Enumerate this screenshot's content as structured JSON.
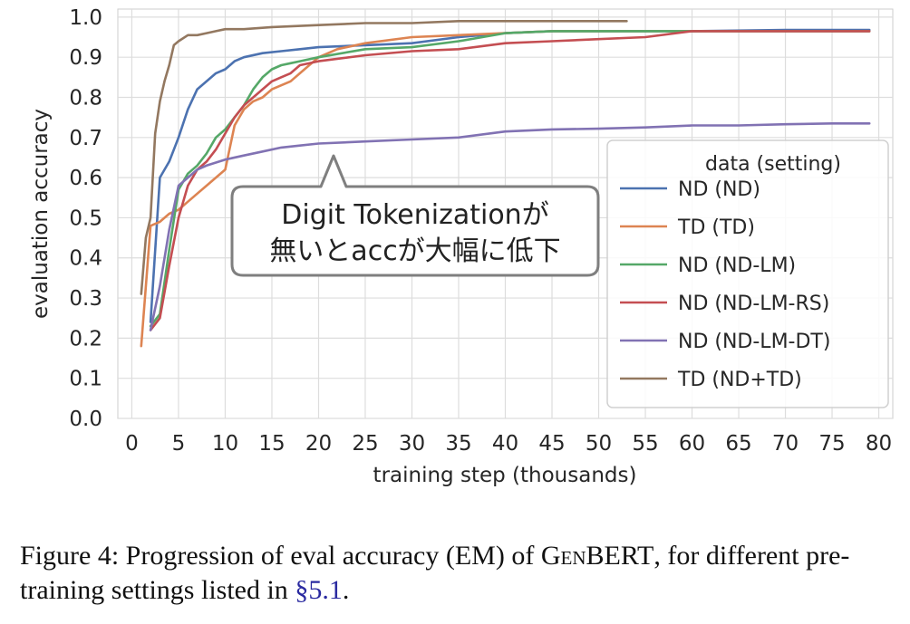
{
  "chart_data": {
    "type": "line",
    "xlabel": "training step (thousands)",
    "ylabel": "evaluation accuracy",
    "xlim": [
      -1.5,
      81.5
    ],
    "ylim": [
      0.0,
      1.02
    ],
    "xticks": [
      0,
      5,
      10,
      15,
      20,
      25,
      30,
      35,
      40,
      45,
      50,
      55,
      60,
      65,
      70,
      75,
      80
    ],
    "yticks": [
      "0.0",
      "0.1",
      "0.2",
      "0.3",
      "0.4",
      "0.5",
      "0.6",
      "0.7",
      "0.8",
      "0.9",
      "1.0"
    ],
    "grid": true,
    "legend": {
      "title": "data (setting)",
      "placement": "center-right"
    },
    "series": [
      {
        "name": "ND (ND)",
        "color": "#4c72b0",
        "x": [
          2,
          3,
          4,
          5,
          6,
          7,
          8,
          9,
          10,
          11,
          12,
          14,
          16,
          18,
          20,
          25,
          30,
          35,
          40,
          45,
          50,
          60,
          70,
          79
        ],
        "y": [
          0.24,
          0.6,
          0.64,
          0.7,
          0.77,
          0.82,
          0.84,
          0.86,
          0.87,
          0.89,
          0.9,
          0.91,
          0.915,
          0.92,
          0.925,
          0.93,
          0.935,
          0.95,
          0.96,
          0.965,
          0.965,
          0.965,
          0.968,
          0.968
        ]
      },
      {
        "name": "TD (TD)",
        "color": "#dd8452",
        "x": [
          1,
          2,
          3,
          4,
          5,
          6,
          7,
          8,
          9,
          10,
          11,
          12,
          13,
          14,
          15,
          16,
          17,
          18,
          20,
          22,
          25,
          30,
          35,
          40,
          45,
          50,
          60,
          70,
          79
        ],
        "y": [
          0.18,
          0.48,
          0.49,
          0.51,
          0.52,
          0.54,
          0.56,
          0.58,
          0.6,
          0.62,
          0.73,
          0.77,
          0.79,
          0.8,
          0.82,
          0.83,
          0.84,
          0.86,
          0.9,
          0.92,
          0.935,
          0.95,
          0.955,
          0.96,
          0.965,
          0.965,
          0.965,
          0.965,
          0.965
        ]
      },
      {
        "name": "ND (ND-LM)",
        "color": "#55a868",
        "x": [
          2,
          3,
          4,
          5,
          6,
          7,
          8,
          9,
          10,
          11,
          12,
          13,
          14,
          15,
          16,
          17,
          18,
          20,
          25,
          30,
          35,
          40,
          45,
          50,
          60,
          70,
          79
        ],
        "y": [
          0.23,
          0.26,
          0.42,
          0.57,
          0.61,
          0.63,
          0.66,
          0.7,
          0.72,
          0.75,
          0.78,
          0.82,
          0.85,
          0.87,
          0.88,
          0.885,
          0.89,
          0.9,
          0.92,
          0.925,
          0.94,
          0.96,
          0.965,
          0.965,
          0.965,
          0.965,
          0.965
        ]
      },
      {
        "name": "ND (ND-LM-RS)",
        "color": "#c44e52",
        "x": [
          2,
          3,
          4,
          5,
          6,
          7,
          8,
          9,
          10,
          11,
          12,
          13,
          14,
          15,
          16,
          17,
          18,
          20,
          25,
          30,
          35,
          40,
          45,
          50,
          55,
          60,
          65,
          70,
          79
        ],
        "y": [
          0.22,
          0.25,
          0.38,
          0.5,
          0.58,
          0.62,
          0.64,
          0.67,
          0.71,
          0.75,
          0.78,
          0.8,
          0.82,
          0.84,
          0.85,
          0.86,
          0.88,
          0.89,
          0.905,
          0.915,
          0.92,
          0.935,
          0.94,
          0.945,
          0.95,
          0.965,
          0.965,
          0.965,
          0.965
        ]
      },
      {
        "name": "ND (ND-LM-DT)",
        "color": "#8172b3",
        "x": [
          2,
          3,
          4,
          5,
          6,
          7,
          8,
          10,
          12,
          14,
          16,
          18,
          20,
          25,
          30,
          35,
          40,
          45,
          50,
          55,
          60,
          65,
          70,
          75,
          79
        ],
        "y": [
          0.22,
          0.33,
          0.47,
          0.58,
          0.6,
          0.62,
          0.63,
          0.645,
          0.655,
          0.665,
          0.675,
          0.68,
          0.685,
          0.69,
          0.695,
          0.7,
          0.715,
          0.72,
          0.722,
          0.725,
          0.73,
          0.73,
          0.733,
          0.735,
          0.735
        ]
      },
      {
        "name": "TD (ND+TD)",
        "color": "#937860",
        "x": [
          1,
          1.5,
          2,
          2.5,
          3,
          3.5,
          4,
          4.5,
          5,
          6,
          7,
          8,
          9,
          10,
          12,
          15,
          20,
          25,
          30,
          35,
          40,
          45,
          50,
          53
        ],
        "y": [
          0.31,
          0.45,
          0.5,
          0.71,
          0.79,
          0.84,
          0.88,
          0.93,
          0.94,
          0.955,
          0.955,
          0.96,
          0.965,
          0.97,
          0.97,
          0.975,
          0.98,
          0.985,
          0.985,
          0.99,
          0.99,
          0.99,
          0.99,
          0.99
        ]
      }
    ]
  },
  "callout": {
    "lines": [
      "Digit Tokenizationが",
      "無いとaccが大幅に低下"
    ]
  },
  "caption": {
    "label": "Figure 4:",
    "text_1": "Progression of eval accuracy (EM) of",
    "model": "GenBERT",
    "text_2": ",",
    "text_3": "for different pre-training settings listed in",
    "ref": "§5.1",
    "text_4": "."
  }
}
